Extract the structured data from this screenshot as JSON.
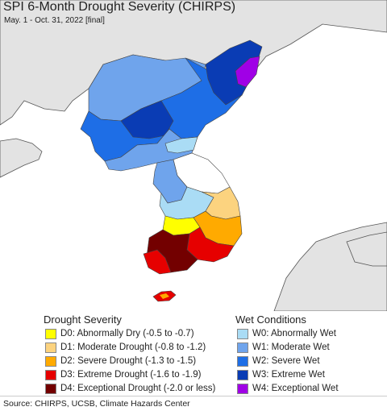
{
  "map": {
    "title": "SPI 6-Month Drought Severity (CHIRPS)",
    "subtitle": "May. 1 - Oct. 31, 2022 [final]",
    "colors": {
      "sea": "#ffffff",
      "land_outside": "#e3e3e3",
      "border": "#444444"
    }
  },
  "legend": {
    "drought": {
      "title": "Drought Severity",
      "items": [
        {
          "label": "D0: Abnormally Dry (-0.5 to -0.7)",
          "color": "#ffff00"
        },
        {
          "label": "D1: Moderate Drought (-0.8 to -1.2)",
          "color": "#fcd37f"
        },
        {
          "label": "D2: Severe Drought (-1.3 to -1.5)",
          "color": "#ffaa00"
        },
        {
          "label": "D3: Extreme Drought (-1.6 to -1.9)",
          "color": "#e60000"
        },
        {
          "label": "D4: Exceptional Drought (-2.0 or less)",
          "color": "#730000"
        }
      ]
    },
    "wet": {
      "title": "Wet Conditions",
      "items": [
        {
          "label": "W0: Abnormally Wet",
          "color": "#aadcf5"
        },
        {
          "label": "W1: Moderate Wet",
          "color": "#6fa4ec"
        },
        {
          "label": "W2: Severe Wet",
          "color": "#1e6ee6"
        },
        {
          "label": "W3: Extreme Wet",
          "color": "#0a3cb4"
        },
        {
          "label": "W4: Exceptional Wet",
          "color": "#a000e6"
        }
      ]
    }
  },
  "footer": {
    "source": "Source: CHIRPS, UCSB, Climate Hazards Center"
  }
}
